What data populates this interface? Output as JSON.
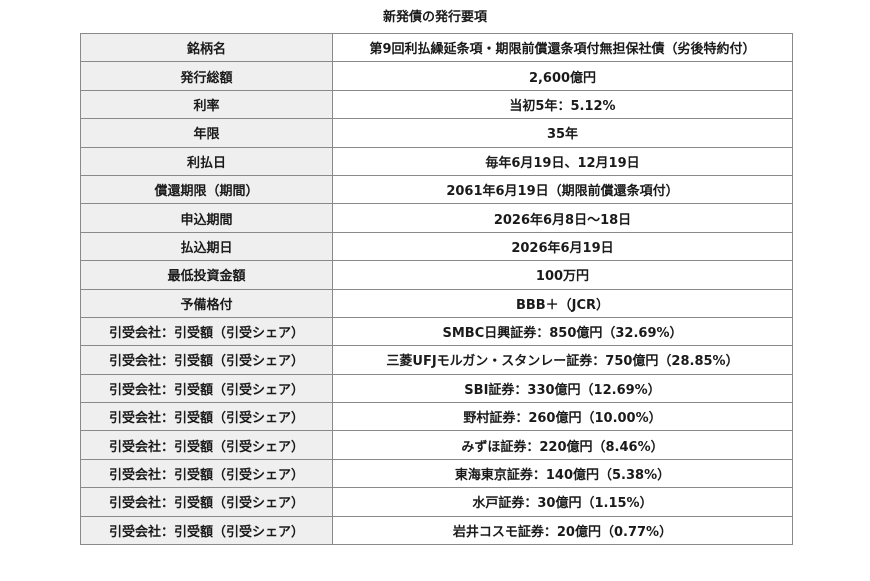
{
  "title": "新発債の発行要項",
  "rows": [
    {
      "label": "銘柄名",
      "value": "第9回利払繰延条項・期限前償還条項付無担保社債（劣後特約付）"
    },
    {
      "label": "発行総額",
      "value": "2,600億円"
    },
    {
      "label": "利率",
      "value": "当初5年：5.12%"
    },
    {
      "label": "年限",
      "value": "35年"
    },
    {
      "label": "利払日",
      "value": "毎年6月19日、12月19日"
    },
    {
      "label": "償還期限（期間）",
      "value": "2061年6月19日（期限前償還条項付）"
    },
    {
      "label": "申込期間",
      "value": "2026年6月8日～18日"
    },
    {
      "label": "払込期日",
      "value": "2026年6月19日"
    },
    {
      "label": "最低投資金額",
      "value": "100万円"
    },
    {
      "label": "予備格付",
      "value": "BBB＋（JCR）"
    },
    {
      "label": "引受会社：引受額（引受シェア）",
      "value": "SMBC日興証券：850億円（32.69%）"
    },
    {
      "label": "引受会社：引受額（引受シェア）",
      "value": "三菱UFJモルガン・スタンレー証券：750億円（28.85%）"
    },
    {
      "label": "引受会社：引受額（引受シェア）",
      "value": "SBI証券：330億円（12.69%）"
    },
    {
      "label": "引受会社：引受額（引受シェア）",
      "value": "野村証券：260億円（10.00%）"
    },
    {
      "label": "引受会社：引受額（引受シェア）",
      "value": "みずほ証券：220億円（8.46%）"
    },
    {
      "label": "引受会社：引受額（引受シェア）",
      "value": "東海東京証券：140億円（5.38%）"
    },
    {
      "label": "引受会社：引受額（引受シェア）",
      "value": "水戸証券：30億円（1.15%）"
    },
    {
      "label": "引受会社：引受額（引受シェア）",
      "value": "岩井コスモ証券：20億円（0.77%）"
    }
  ]
}
